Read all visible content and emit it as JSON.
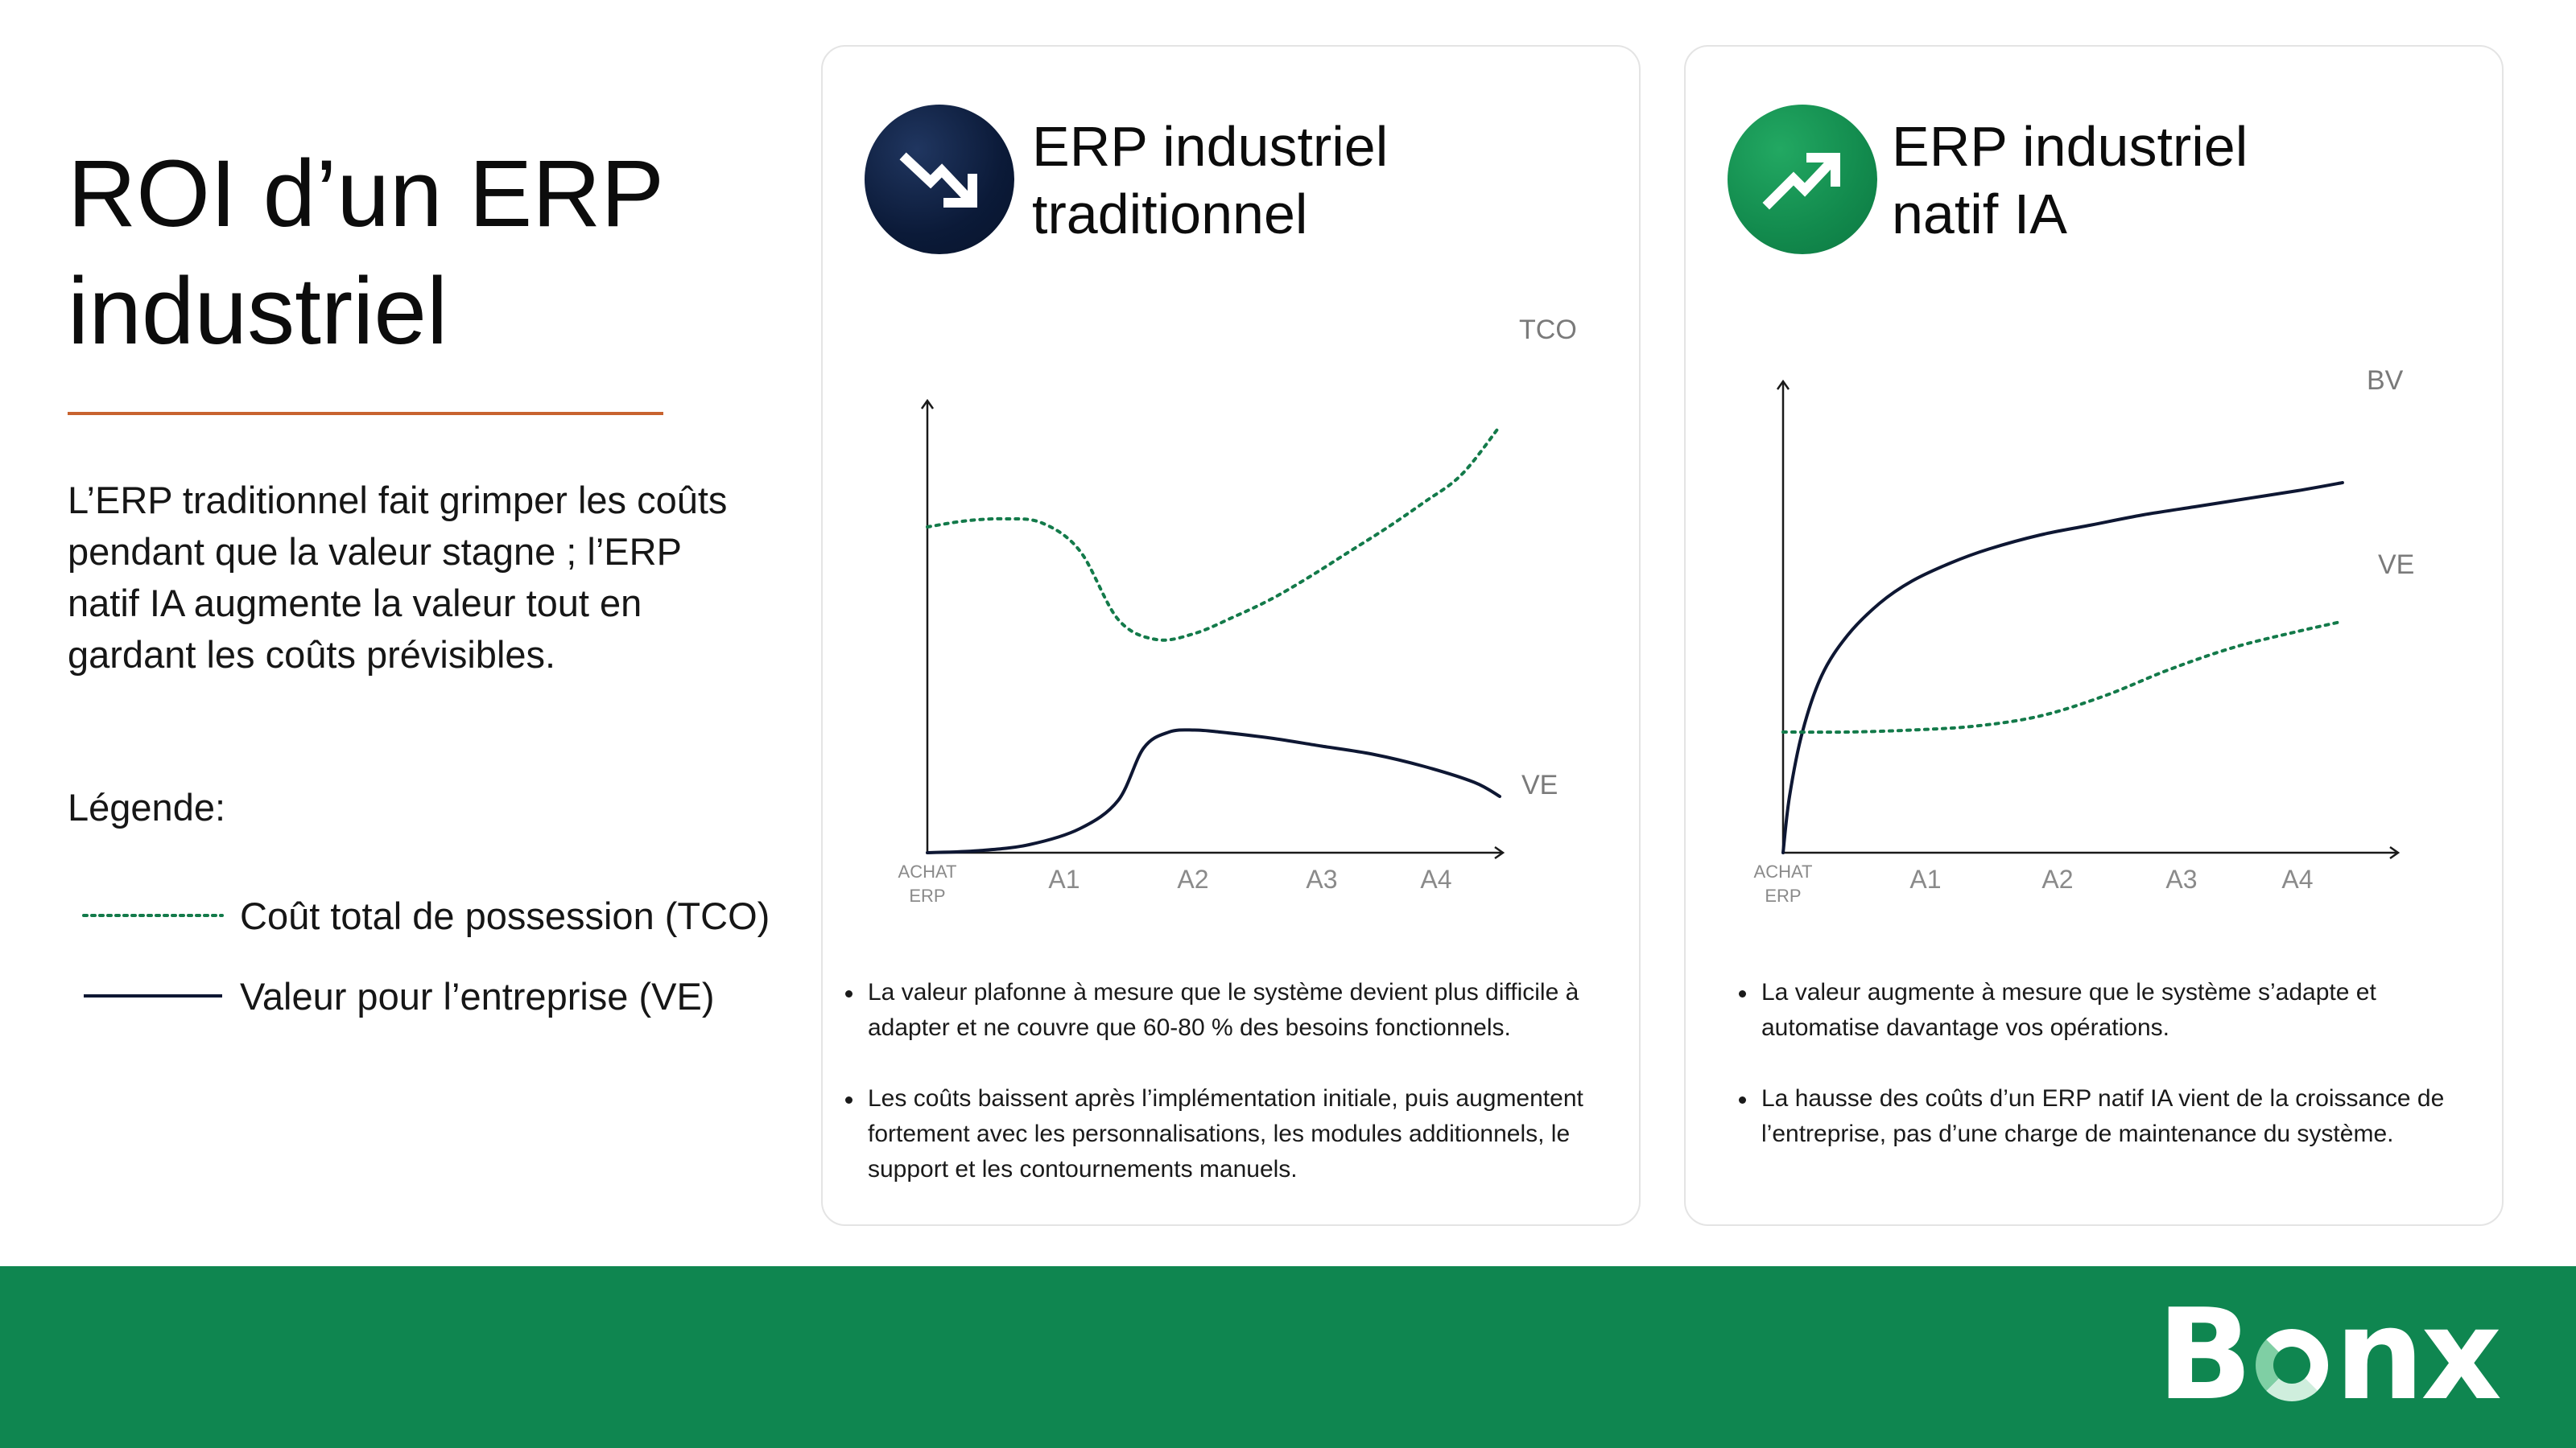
{
  "page": {
    "title": "ROI d’un ERP industriel",
    "intro": "L’ERP traditionnel fait grimper les coûts pendant que la valeur stagne ; l’ERP natif IA augmente la valeur tout en gardant les coûts prévisibles.",
    "legend_title": "Légende:",
    "legend_tco": "Coût total de possession (TCO)",
    "legend_ve": "Valeur pour l’entreprise (VE)",
    "brand_prefix": "B",
    "brand_suffix": "nx"
  },
  "colors": {
    "accent_rule": "#c8632f",
    "tco_line": "#137a4a",
    "value_line": "#0e1733",
    "footer": "#0f8650"
  },
  "icons": {
    "card_a": "trend-down-icon",
    "card_b": "trend-up-icon"
  },
  "chart_data": [
    {
      "type": "line",
      "title": "ERP industriel traditionnel",
      "x_categories": [
        "ACHAT ERP",
        "A1",
        "A2",
        "A3",
        "A4"
      ],
      "ylim": [
        0,
        100
      ],
      "grid": false,
      "series": [
        {
          "name": "TCO",
          "style": "dotted",
          "x": [
            0,
            0.3,
            0.6,
            0.9,
            1.2,
            1.5,
            1.8,
            2.1,
            2.4,
            2.7,
            3.0,
            3.3,
            3.6,
            3.9,
            4.2,
            4.5
          ],
          "y": [
            81,
            82.5,
            83,
            82,
            75,
            58,
            53,
            54.5,
            58.5,
            63,
            68.5,
            74.5,
            80.5,
            87,
            94,
            106
          ]
        },
        {
          "name": "VE",
          "style": "solid",
          "x": [
            0,
            0.4,
            0.8,
            1.2,
            1.5,
            1.7,
            1.9,
            2.1,
            2.3,
            2.7,
            3.1,
            3.5,
            3.9,
            4.3,
            4.5
          ],
          "y": [
            0,
            0.5,
            2,
            6,
            13,
            26,
            30,
            30.5,
            30,
            28.5,
            26.5,
            24.5,
            21.5,
            17.5,
            14
          ]
        }
      ]
    },
    {
      "type": "line",
      "title": "ERP industriel natif IA",
      "x_categories": [
        "ACHAT ERP",
        "A1",
        "A2",
        "A3",
        "A4"
      ],
      "ylim": [
        0,
        100
      ],
      "grid": false,
      "series": [
        {
          "name": "BV",
          "style": "solid",
          "x": [
            0,
            0.05,
            0.15,
            0.3,
            0.5,
            0.75,
            1.0,
            1.3,
            1.6,
            2.0,
            2.4,
            2.8,
            3.2,
            3.6,
            4.0,
            4.35
          ],
          "y": [
            0,
            14,
            30,
            44,
            54,
            62,
            67.5,
            72,
            75.5,
            79,
            81.5,
            84,
            86,
            88,
            90,
            92
          ]
        },
        {
          "name": "VE",
          "style": "dotted",
          "x": [
            0,
            0.5,
            1.0,
            1.5,
            2.0,
            2.5,
            3.0,
            3.5,
            4.0,
            4.35
          ],
          "y": [
            30,
            30,
            30.5,
            31.5,
            34,
            39,
            45.5,
            51,
            55,
            57.5
          ]
        }
      ]
    }
  ],
  "card_a": {
    "title_line1": "ERP industriel",
    "title_line2": "traditionnel",
    "axis_first_line1": "ACHAT",
    "axis_first_line2": "ERP",
    "ticks": [
      "A1",
      "A2",
      "A3",
      "A4"
    ],
    "series_labels": [
      "TCO",
      "VE"
    ],
    "bullet1": "La valeur plafonne à mesure que le système devient plus difficile à adapter et ne couvre que 60-80 % des besoins fonctionnels.",
    "bullet2": "Les coûts baissent après l’implémentation initiale, puis augmentent fortement avec les personnalisations, les modules additionnels, le support et les contournements manuels."
  },
  "card_b": {
    "title_line1": "ERP industriel",
    "title_line2": "natif IA",
    "axis_first_line1": "ACHAT",
    "axis_first_line2": "ERP",
    "ticks": [
      "A1",
      "A2",
      "A3",
      "A4"
    ],
    "series_labels": [
      "BV",
      "VE"
    ],
    "bullet1": "La valeur augmente à mesure que le système s’adapte et automatise davantage vos opérations.",
    "bullet2": "La hausse des coûts d’un ERP natif IA vient de la croissance de l’entreprise, pas d’une charge de maintenance du système."
  }
}
